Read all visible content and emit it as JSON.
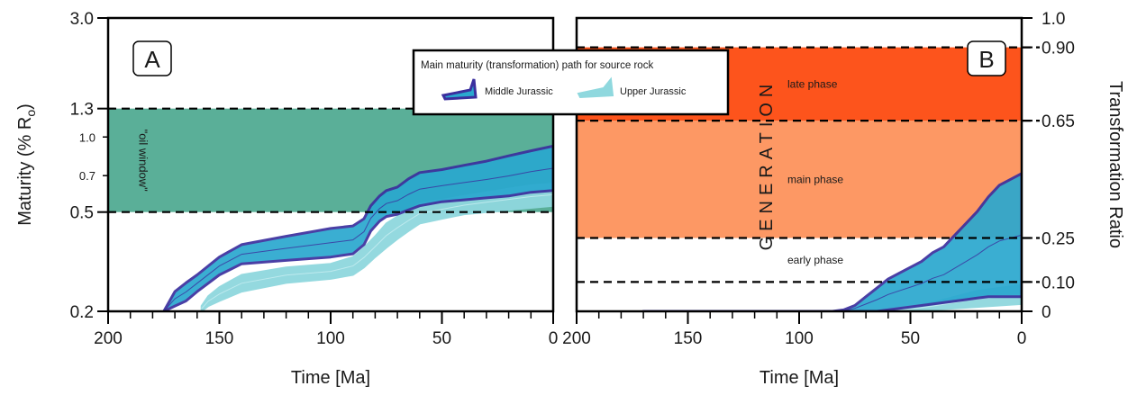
{
  "chart_data": [
    {
      "panel": "A",
      "type": "area",
      "xlabel": "Time [Ma]",
      "ylabel": "Maturity (% R",
      "ylabel_sub": "o",
      "ylabel_close": ")",
      "xlim": [
        200,
        0
      ],
      "ylim": [
        0.2,
        3.0
      ],
      "yscale": "log",
      "x_ticks": [
        "200",
        "150",
        "100",
        "50",
        "0"
      ],
      "y_ticks_major": [
        "0.2",
        "0.5",
        "1.3",
        "3.0"
      ],
      "y_ticks_minor": [
        "0.7",
        "1.0"
      ],
      "oil_window": {
        "label": "\"oil window\"",
        "range": [
          0.5,
          1.3
        ]
      },
      "series": [
        {
          "name": "Middle Jurassic",
          "color": "#2aa8cf",
          "outline": "#3b2f9e",
          "x": [
            175,
            170,
            165,
            160,
            150,
            140,
            120,
            100,
            90,
            85,
            82,
            78,
            75,
            70,
            65,
            60,
            50,
            40,
            30,
            20,
            10,
            0
          ],
          "upper": [
            0.2,
            0.24,
            0.26,
            0.28,
            0.33,
            0.37,
            0.4,
            0.43,
            0.44,
            0.47,
            0.53,
            0.58,
            0.61,
            0.63,
            0.68,
            0.72,
            0.74,
            0.77,
            0.8,
            0.84,
            0.88,
            0.92
          ],
          "lower": [
            0.2,
            0.21,
            0.22,
            0.24,
            0.28,
            0.31,
            0.32,
            0.33,
            0.34,
            0.37,
            0.42,
            0.46,
            0.48,
            0.49,
            0.51,
            0.53,
            0.55,
            0.56,
            0.57,
            0.58,
            0.6,
            0.61
          ]
        },
        {
          "name": "Upper Jurassic",
          "color": "#8fd8de",
          "x": [
            158,
            155,
            150,
            140,
            120,
            100,
            90,
            85,
            80,
            75,
            70,
            65,
            60,
            50,
            40,
            30,
            20,
            10,
            0
          ],
          "upper": [
            0.21,
            0.23,
            0.25,
            0.28,
            0.3,
            0.31,
            0.33,
            0.36,
            0.4,
            0.45,
            0.48,
            0.51,
            0.54,
            0.56,
            0.58,
            0.6,
            0.62,
            0.64,
            0.65
          ],
          "lower": [
            0.2,
            0.21,
            0.22,
            0.24,
            0.26,
            0.27,
            0.28,
            0.3,
            0.33,
            0.36,
            0.39,
            0.42,
            0.45,
            0.47,
            0.49,
            0.5,
            0.51,
            0.52,
            0.53
          ]
        }
      ]
    },
    {
      "panel": "B",
      "type": "area",
      "xlabel": "Time [Ma]",
      "ylabel": "Transformation Ratio",
      "xlim": [
        200,
        0
      ],
      "ylim": [
        0,
        1.0
      ],
      "x_ticks": [
        "200",
        "150",
        "100",
        "50",
        "0"
      ],
      "y_ticks": [
        "0",
        "0.10",
        "0.25",
        "0.65",
        "0.90",
        "1.0"
      ],
      "generation_label": "GENERATION",
      "phases": [
        {
          "label": "early phase",
          "range": [
            0.1,
            0.25
          ],
          "color": "#ffffff"
        },
        {
          "label": "main phase",
          "range": [
            0.25,
            0.65
          ],
          "color": "#fd9864"
        },
        {
          "label": "late phase",
          "range": [
            0.65,
            0.9
          ],
          "color": "#fd541c"
        }
      ],
      "series": [
        {
          "name": "Middle Jurassic",
          "color": "#2aa8cf",
          "outline": "#3b2f9e",
          "x": [
            170,
            150,
            120,
            100,
            85,
            80,
            75,
            70,
            65,
            60,
            55,
            50,
            45,
            40,
            35,
            30,
            25,
            20,
            15,
            10,
            5,
            0
          ],
          "upper": [
            0,
            0,
            0,
            0,
            0,
            0.005,
            0.02,
            0.05,
            0.08,
            0.11,
            0.13,
            0.15,
            0.17,
            0.2,
            0.22,
            0.26,
            0.3,
            0.34,
            0.39,
            0.43,
            0.45,
            0.47
          ],
          "lower": [
            0,
            0,
            0,
            0,
            0,
            0,
            0,
            0,
            0,
            0.005,
            0.01,
            0.015,
            0.02,
            0.025,
            0.03,
            0.035,
            0.04,
            0.045,
            0.05,
            0.05,
            0.05,
            0.05
          ]
        },
        {
          "name": "Upper Jurassic",
          "color": "#8fd8de",
          "x": [
            160,
            120,
            90,
            70,
            60,
            50,
            40,
            30,
            20,
            10,
            0
          ],
          "upper": [
            0,
            0,
            0,
            0,
            0.005,
            0.015,
            0.03,
            0.05,
            0.07,
            0.08,
            0.09
          ],
          "lower": [
            0,
            0,
            0,
            0,
            0,
            0,
            0.005,
            0.01,
            0.015,
            0.02,
            0.025
          ]
        }
      ]
    }
  ],
  "legend": {
    "title": "Main maturity (transformation) path for source rock",
    "items": [
      {
        "label": "Middle Jurassic",
        "color": "#2aa8cf",
        "outline": "#3b2f9e"
      },
      {
        "label": "Upper Jurassic",
        "color": "#8fd8de",
        "outline": "#8fd8de"
      }
    ]
  },
  "oil_window_color": "#5aaf98"
}
